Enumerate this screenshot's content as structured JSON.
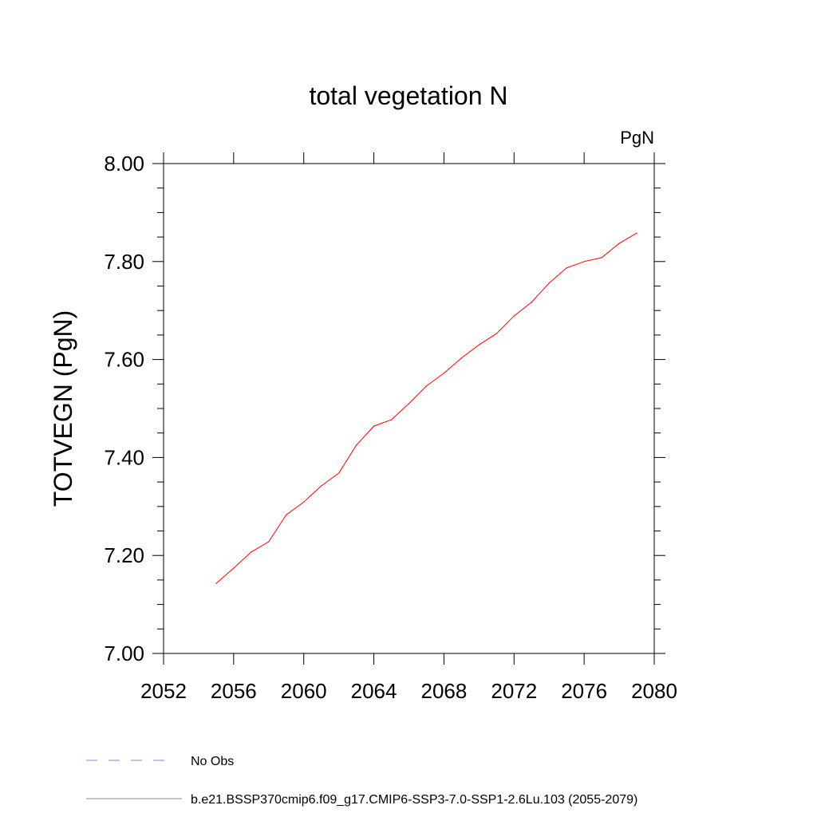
{
  "chart_data": {
    "type": "line",
    "title": "total vegetation N",
    "units_label": "PgN",
    "ylabel": "TOTVEGN  (PgN)",
    "xlabel": "",
    "xlim": [
      2052,
      2080
    ],
    "ylim": [
      7.0,
      8.0
    ],
    "xticks": [
      "2052",
      "2056",
      "2060",
      "2064",
      "2068",
      "2072",
      "2076",
      "2080"
    ],
    "yticks": [
      "7.00",
      "7.20",
      "7.40",
      "7.60",
      "7.80",
      "8.00"
    ],
    "grid": false,
    "legend_position": "bottom",
    "legend": [
      {
        "label": "No Obs",
        "color": "#8080ff",
        "style": "dashed"
      },
      {
        "label": "b.e21.BSSP370cmip6.f09_g17.CMIP6-SSP3-7.0-SSP1-2.6Lu.103 (2055-2079)",
        "color": "#888888",
        "style": "solid"
      }
    ],
    "series": [
      {
        "color": "#ff0000",
        "x": [
          2055,
          2056,
          2057,
          2058,
          2059,
          2060,
          2061,
          2062,
          2063,
          2064,
          2065,
          2066,
          2067,
          2068,
          2069,
          2070,
          2071,
          2072,
          2073,
          2074,
          2075,
          2076,
          2077,
          2078,
          2079
        ],
        "y": [
          7.143,
          7.174,
          7.207,
          7.228,
          7.283,
          7.309,
          7.342,
          7.368,
          7.425,
          7.464,
          7.477,
          7.51,
          7.546,
          7.572,
          7.603,
          7.63,
          7.653,
          7.689,
          7.717,
          7.756,
          7.787,
          7.8,
          7.808,
          7.837,
          7.858
        ]
      }
    ]
  }
}
